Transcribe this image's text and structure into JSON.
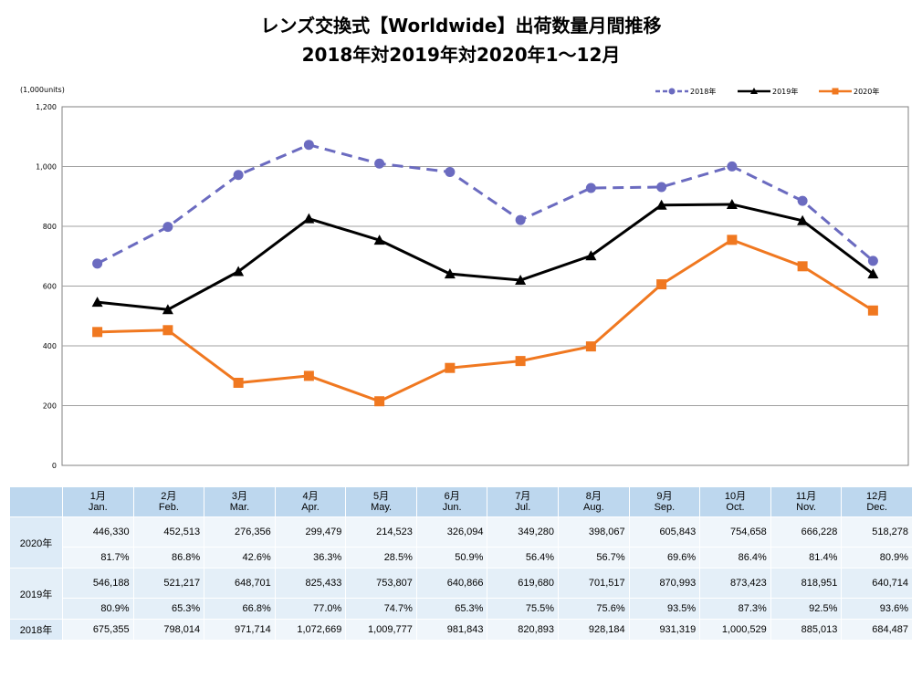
{
  "title_line1": "レンズ交換式【Worldwide】出荷数量月間推移",
  "title_line2": "2018年対2019年対2020年1～12月",
  "chart_data": {
    "type": "line",
    "title": "レンズ交換式【Worldwide】出荷数量月間推移 2018年対2019年対2020年1～12月",
    "ylabel": "(1,000units)",
    "ylim": [
      0,
      1200
    ],
    "yticks": [
      "0",
      "200",
      "400",
      "600",
      "800",
      "1,000",
      "1,200"
    ],
    "categories": [
      "1月",
      "2月",
      "3月",
      "4月",
      "5月",
      "6月",
      "7月",
      "8月",
      "9月",
      "10月",
      "11月",
      "12月"
    ],
    "series": [
      {
        "name": "2018年",
        "color": "#6b6bc0",
        "marker": "circle",
        "dash": true,
        "values": [
          675.355,
          798.014,
          971.714,
          1072.669,
          1009.777,
          981.843,
          820.893,
          928.184,
          931.319,
          1000.529,
          885.013,
          684.487
        ]
      },
      {
        "name": "2019年",
        "color": "#000000",
        "marker": "triangle",
        "dash": false,
        "values": [
          546.188,
          521.217,
          648.701,
          825.433,
          753.807,
          640.866,
          619.68,
          701.517,
          870.993,
          873.423,
          818.951,
          640.714
        ]
      },
      {
        "name": "2020年",
        "color": "#f07820",
        "marker": "square",
        "dash": false,
        "values": [
          446.33,
          452.513,
          276.356,
          299.479,
          214.523,
          326.094,
          349.28,
          398.067,
          605.843,
          754.658,
          666.228,
          518.278
        ]
      }
    ],
    "legend_position": "top-right",
    "grid": true
  },
  "table": {
    "months": [
      {
        "jp": "1月",
        "en": "Jan."
      },
      {
        "jp": "2月",
        "en": "Feb."
      },
      {
        "jp": "3月",
        "en": "Mar."
      },
      {
        "jp": "4月",
        "en": "Apr."
      },
      {
        "jp": "5月",
        "en": "May."
      },
      {
        "jp": "6月",
        "en": "Jun."
      },
      {
        "jp": "7月",
        "en": "Jul."
      },
      {
        "jp": "8月",
        "en": "Aug."
      },
      {
        "jp": "9月",
        "en": "Sep."
      },
      {
        "jp": "10月",
        "en": "Oct."
      },
      {
        "jp": "11月",
        "en": "Nov."
      },
      {
        "jp": "12月",
        "en": "Dec."
      }
    ],
    "rows": [
      {
        "label": "2020年",
        "units": [
          "446,330",
          "452,513",
          "276,356",
          "299,479",
          "214,523",
          "326,094",
          "349,280",
          "398,067",
          "605,843",
          "754,658",
          "666,228",
          "518,278"
        ],
        "pct": [
          "81.7%",
          "86.8%",
          "42.6%",
          "36.3%",
          "28.5%",
          "50.9%",
          "56.4%",
          "56.7%",
          "69.6%",
          "86.4%",
          "81.4%",
          "80.9%"
        ]
      },
      {
        "label": "2019年",
        "units": [
          "546,188",
          "521,217",
          "648,701",
          "825,433",
          "753,807",
          "640,866",
          "619,680",
          "701,517",
          "870,993",
          "873,423",
          "818,951",
          "640,714"
        ],
        "pct": [
          "80.9%",
          "65.3%",
          "66.8%",
          "77.0%",
          "74.7%",
          "65.3%",
          "75.5%",
          "75.6%",
          "93.5%",
          "87.3%",
          "92.5%",
          "93.6%"
        ]
      },
      {
        "label": "2018年",
        "units": [
          "675,355",
          "798,014",
          "971,714",
          "1,072,669",
          "1,009,777",
          "981,843",
          "820,893",
          "928,184",
          "931,319",
          "1,000,529",
          "885,013",
          "684,487"
        ]
      }
    ]
  }
}
